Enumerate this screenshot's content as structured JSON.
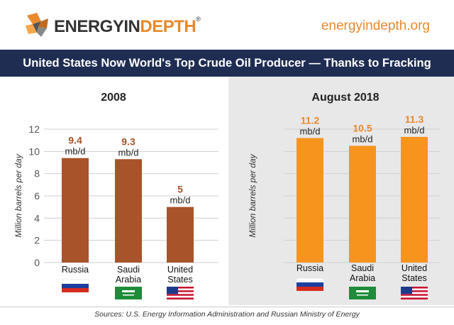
{
  "brand": {
    "logo_part1": "ENERGYIN",
    "logo_part2": "DEPTH",
    "trademark": "®",
    "url": "energyindepth.org",
    "accent_color": "#e8892c"
  },
  "banner_title": "United States Now World's Top Crude Oil Producer — Thanks to Fracking",
  "sources": "Sources: U.S. Energy Information Administration and Russian Ministry of Energy",
  "chart_data": [
    {
      "type": "bar",
      "title": "2008",
      "ylabel": "Million barrels per day",
      "ylim": [
        0,
        12
      ],
      "yticks": [
        0,
        2,
        4,
        6,
        8,
        10,
        12
      ],
      "grid": true,
      "show_y_axis": true,
      "bar_color": "#a8532a",
      "label_color": "#a8532a",
      "unit": "mb/d",
      "categories": [
        "Russia",
        "Saudi\nArabia",
        "United\nStates"
      ],
      "values": [
        9.4,
        9.3,
        5
      ],
      "flags": [
        "russia-flag",
        "saudi-flag",
        "us-flag"
      ]
    },
    {
      "type": "bar",
      "title": "August 2018",
      "ylabel": "Million barrels per day",
      "ylim": [
        0,
        12
      ],
      "yticks": [
        0,
        2,
        4,
        6,
        8,
        10,
        12
      ],
      "grid": true,
      "show_y_axis": false,
      "bar_color": "#f7941d",
      "label_color": "#e8892c",
      "unit": "mb/d",
      "categories": [
        "Russia",
        "Saudi\nArabia",
        "United\nStates"
      ],
      "values": [
        11.2,
        10.5,
        11.3
      ],
      "flags": [
        "russia-flag",
        "saudi-flag",
        "us-flag"
      ]
    }
  ]
}
